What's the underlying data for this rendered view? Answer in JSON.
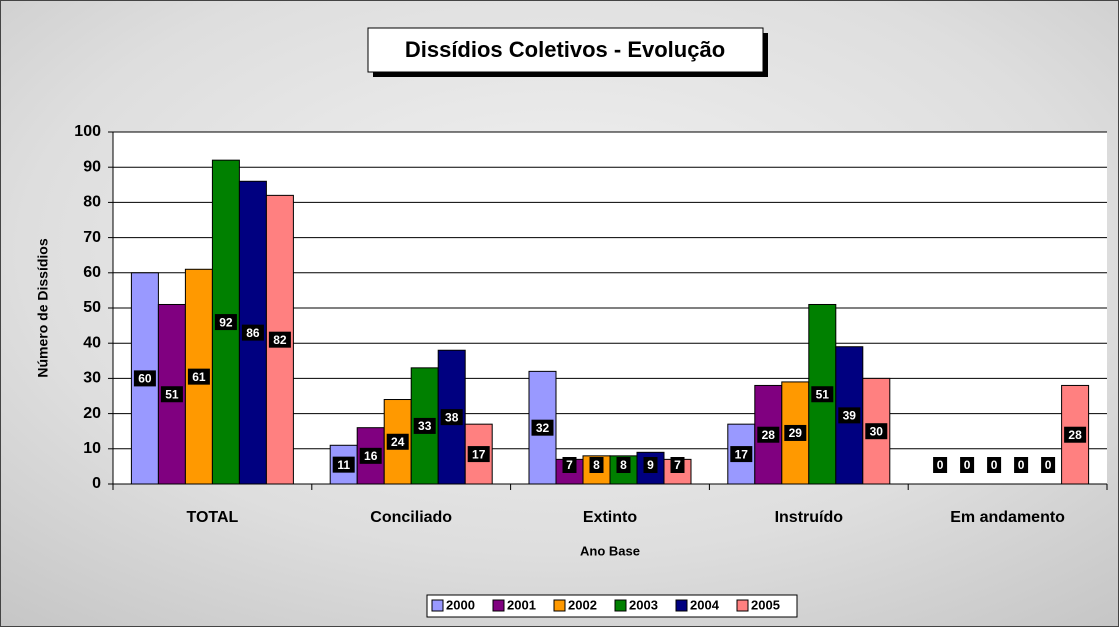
{
  "chart_data": {
    "type": "bar",
    "title": "Dissídios Coletivos - Evolução",
    "x_label": "Ano Base",
    "y_label": "Número de Dissídios",
    "categories": [
      "TOTAL",
      "Conciliado",
      "Extinto",
      "Instruído",
      "Em andamento"
    ],
    "series": [
      {
        "name": "2000",
        "color": "#9999ff",
        "values": [
          60,
          11,
          32,
          17,
          0
        ]
      },
      {
        "name": "2001",
        "color": "#800080",
        "values": [
          51,
          16,
          7,
          28,
          0
        ]
      },
      {
        "name": "2002",
        "color": "#ff9900",
        "values": [
          61,
          24,
          8,
          29,
          0
        ]
      },
      {
        "name": "2003",
        "color": "#008000",
        "values": [
          92,
          33,
          8,
          51,
          0
        ]
      },
      {
        "name": "2004",
        "color": "#000080",
        "values": [
          86,
          38,
          9,
          39,
          0
        ]
      },
      {
        "name": "2005",
        "color": "#ff8080",
        "values": [
          82,
          17,
          7,
          30,
          28
        ]
      }
    ],
    "ylim": [
      0,
      100
    ],
    "yticks": [
      0,
      10,
      20,
      30,
      40,
      50,
      60,
      70,
      80,
      90,
      100
    ],
    "grid": true,
    "legend": "bottom"
  }
}
